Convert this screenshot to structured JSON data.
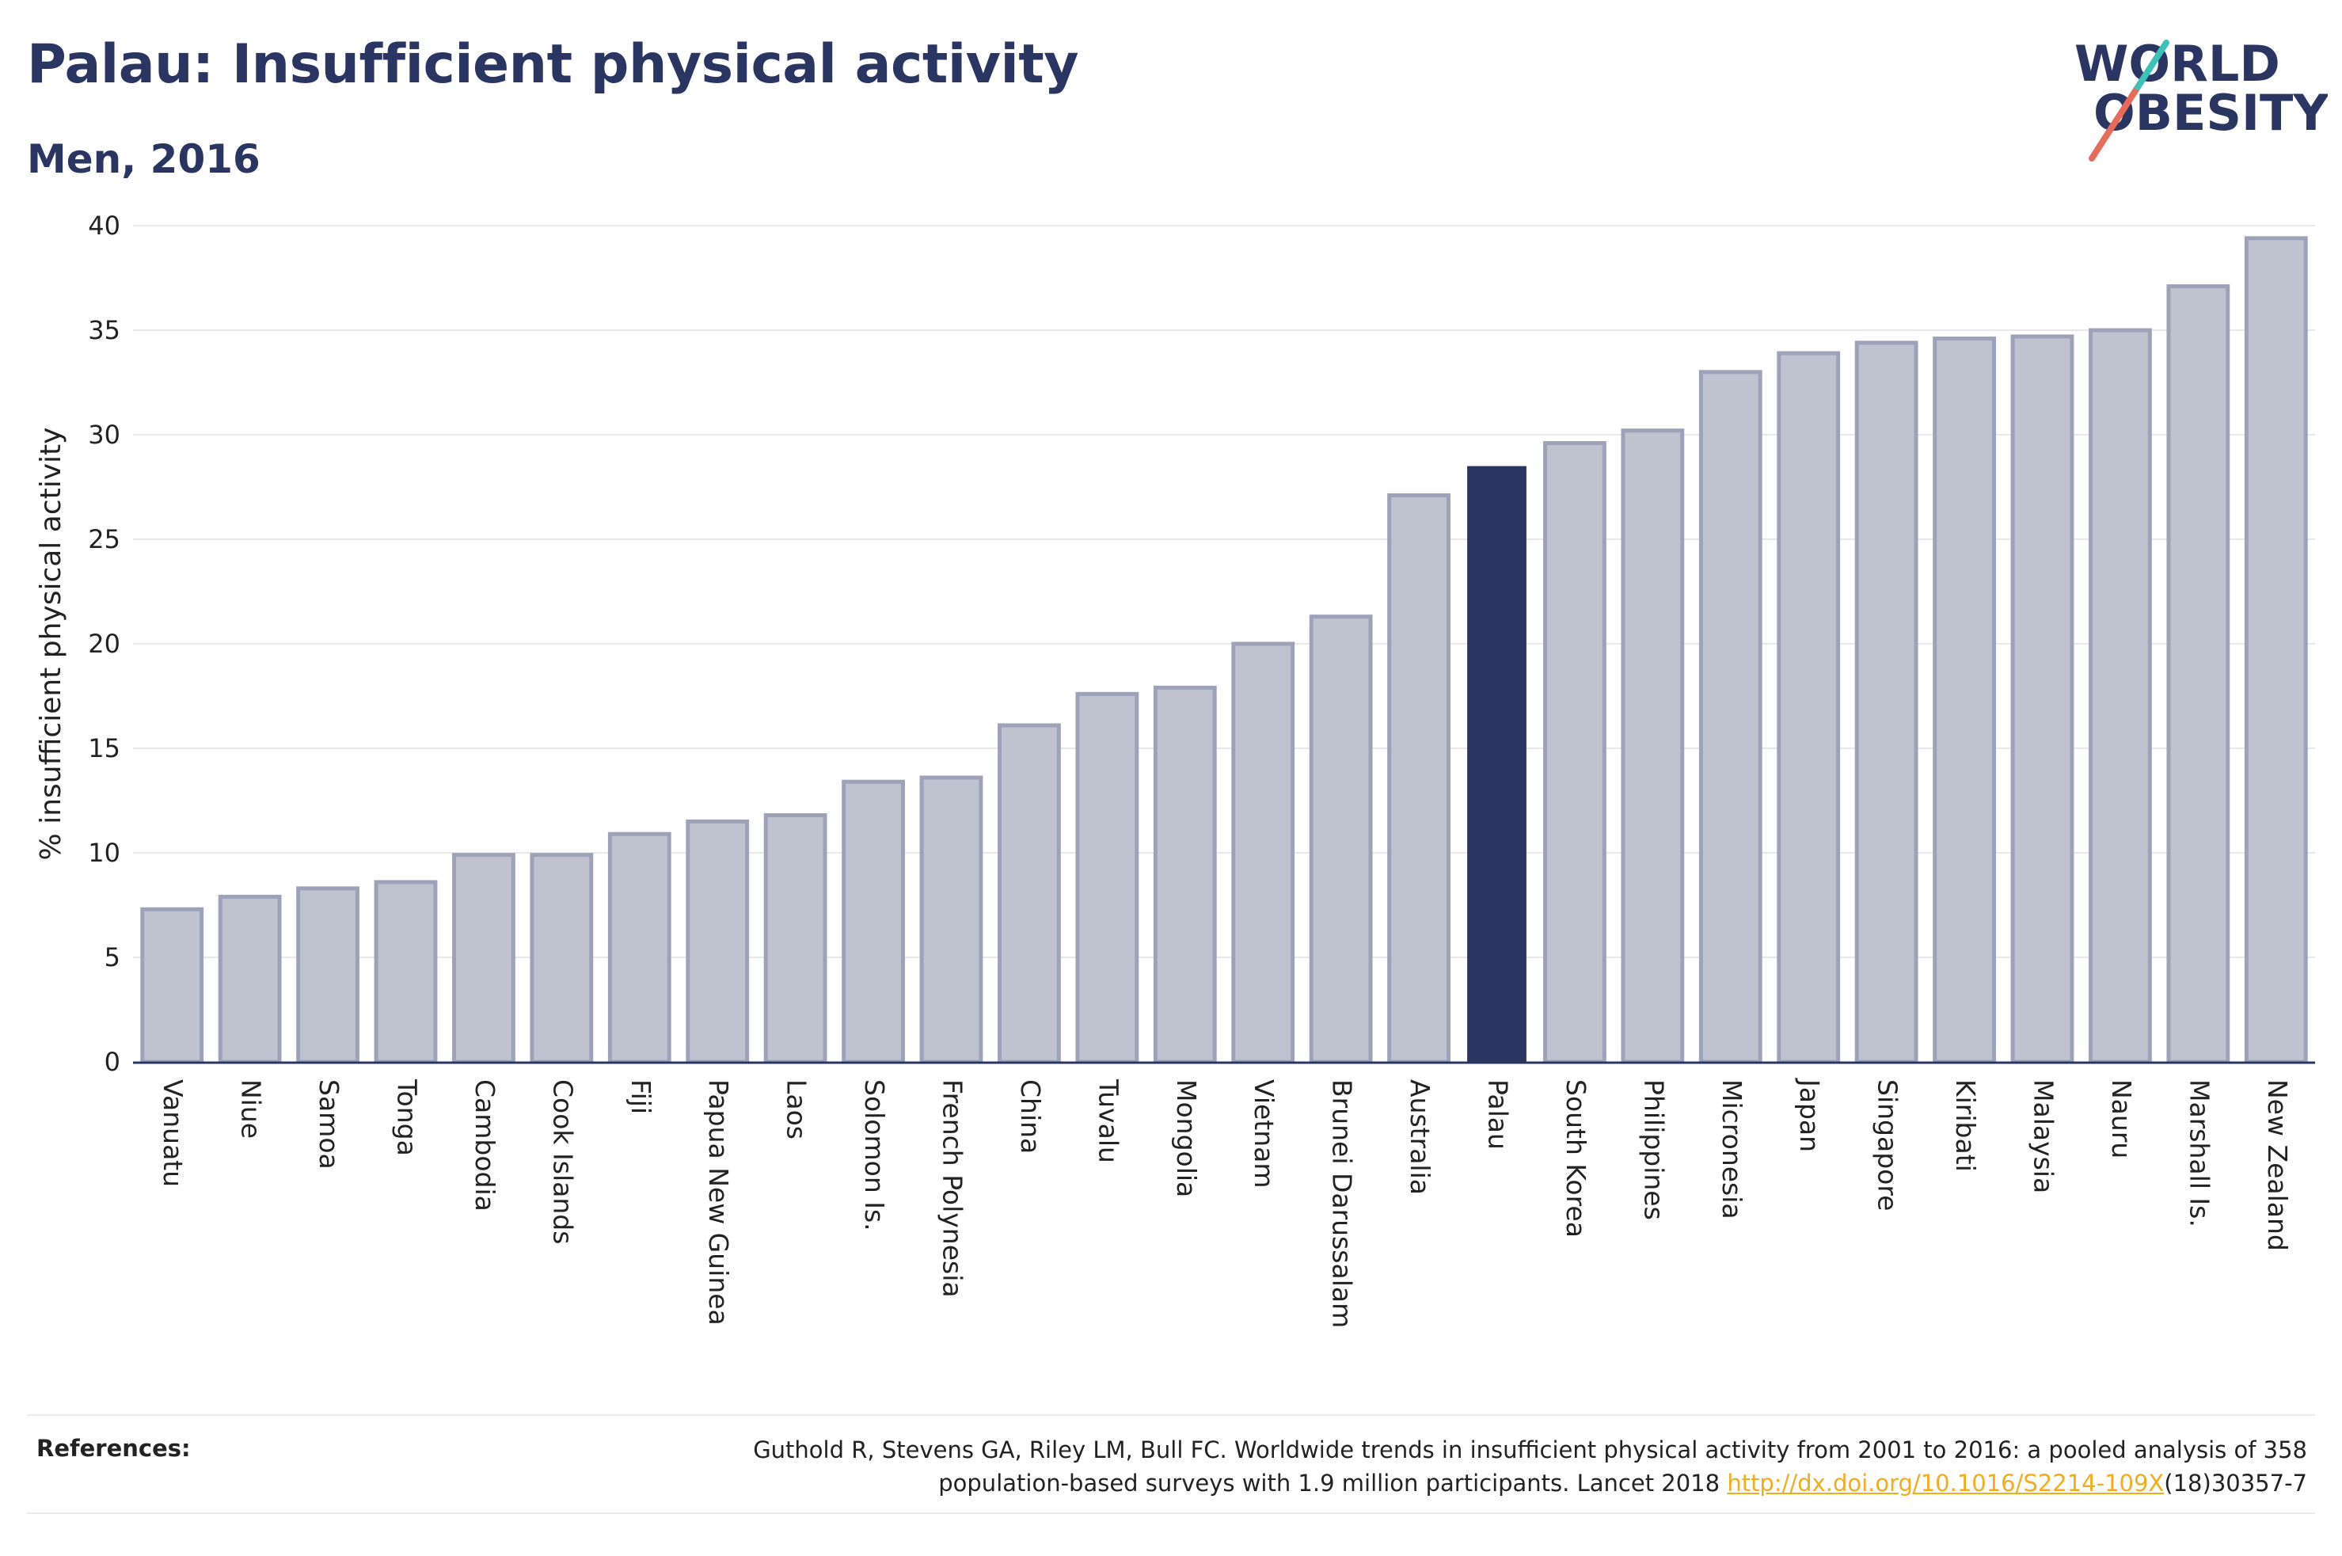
{
  "header": {
    "title": "Palau: Insufficient physical activity",
    "subtitle": "Men, 2016"
  },
  "logo": {
    "line1": "WORLD",
    "line2": "OBESITY",
    "colors": {
      "text": "#2b3561",
      "slash_coral": "#e86a5a",
      "slash_teal": "#3ec1b6"
    }
  },
  "chart_data": {
    "type": "bar",
    "ylabel": "% insufficient physical activity",
    "xlabel": "",
    "ylim": [
      0,
      40
    ],
    "yticks": [
      0,
      5,
      10,
      15,
      20,
      25,
      30,
      35,
      40
    ],
    "grid": true,
    "highlight": "Palau",
    "colors": {
      "bar_fill": "#bfc2cf",
      "bar_stroke": "#9da2b9",
      "highlight": "#2b3561",
      "grid": "#e8e8e8",
      "axis": "#2b3561"
    },
    "categories": [
      "Vanuatu",
      "Niue",
      "Samoa",
      "Tonga",
      "Cambodia",
      "Cook Islands",
      "Fiji",
      "Papua New Guinea",
      "Laos",
      "Solomon Is.",
      "French Polynesia",
      "China",
      "Tuvalu",
      "Mongolia",
      "Vietnam",
      "Brunei Darussalam",
      "Australia",
      "Palau",
      "South Korea",
      "Philippines",
      "Micronesia",
      "Japan",
      "Singapore",
      "Kiribati",
      "Malaysia",
      "Nauru",
      "Marshall Is.",
      "New Zealand"
    ],
    "values": [
      7.3,
      7.9,
      8.3,
      8.6,
      9.9,
      9.9,
      10.9,
      11.5,
      11.8,
      13.4,
      13.6,
      16.1,
      17.6,
      17.9,
      20.0,
      21.3,
      27.1,
      28.5,
      29.6,
      30.2,
      33.0,
      33.9,
      34.4,
      34.6,
      34.7,
      35.0,
      37.1,
      39.4
    ]
  },
  "references": {
    "label": "References:",
    "line1": "Guthold R, Stevens GA, Riley LM, Bull FC. Worldwide trends in insufficient physical activity from 2001 to 2016: a pooled analysis of 358",
    "line2_prefix": "population-based surveys with 1.9 million participants. Lancet 2018 ",
    "link": "http://dx.doi.org/10.1016/S2214-109X",
    "line2_suffix": "(18)30357-7"
  }
}
